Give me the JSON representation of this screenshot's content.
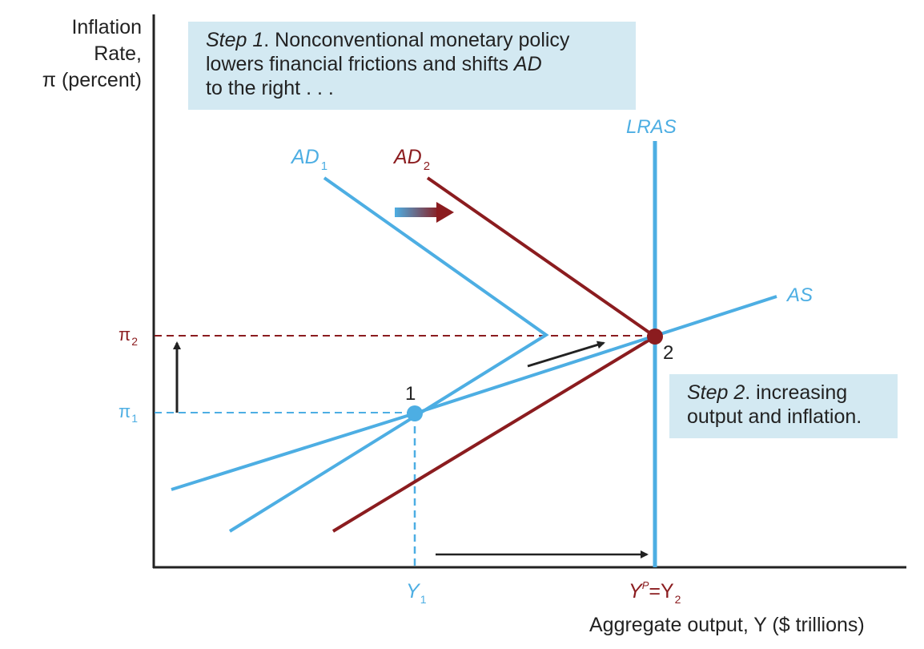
{
  "axes": {
    "y_label_lines": [
      "Inflation",
      "Rate,",
      "π (percent)"
    ],
    "x_label": "Aggregate output, Y ($ trillions)"
  },
  "curves": {
    "ad1": {
      "label": "AD",
      "sub": "1"
    },
    "ad2": {
      "label": "AD",
      "sub": "2"
    },
    "as": {
      "label": "AS"
    },
    "lras": {
      "label": "LRAS"
    }
  },
  "points": {
    "p1": {
      "label": "1"
    },
    "p2": {
      "label": "2"
    }
  },
  "ticks": {
    "pi1": {
      "sym": "π",
      "sub": "1"
    },
    "pi2": {
      "sym": "π",
      "sub": "2"
    },
    "y1": {
      "sym": "Y",
      "sub": "1"
    },
    "yp": {
      "sym": "Y",
      "sup": "P",
      "eq": "=Y",
      "sub": "2"
    }
  },
  "step1": {
    "italic": "Step 1",
    "line1_rest": ". Nonconventional monetary policy",
    "line2_a": "lowers financial frictions and shifts ",
    "line2_b": "AD",
    "line3": "to the right . . ."
  },
  "step2": {
    "italic": "Step 2",
    "line1_rest": ". increasing",
    "line2": "output and inflation."
  },
  "colors": {
    "blue": "#4daee3",
    "red": "#8b1c1f",
    "box": "#d3e9f2",
    "axis": "#222222"
  }
}
